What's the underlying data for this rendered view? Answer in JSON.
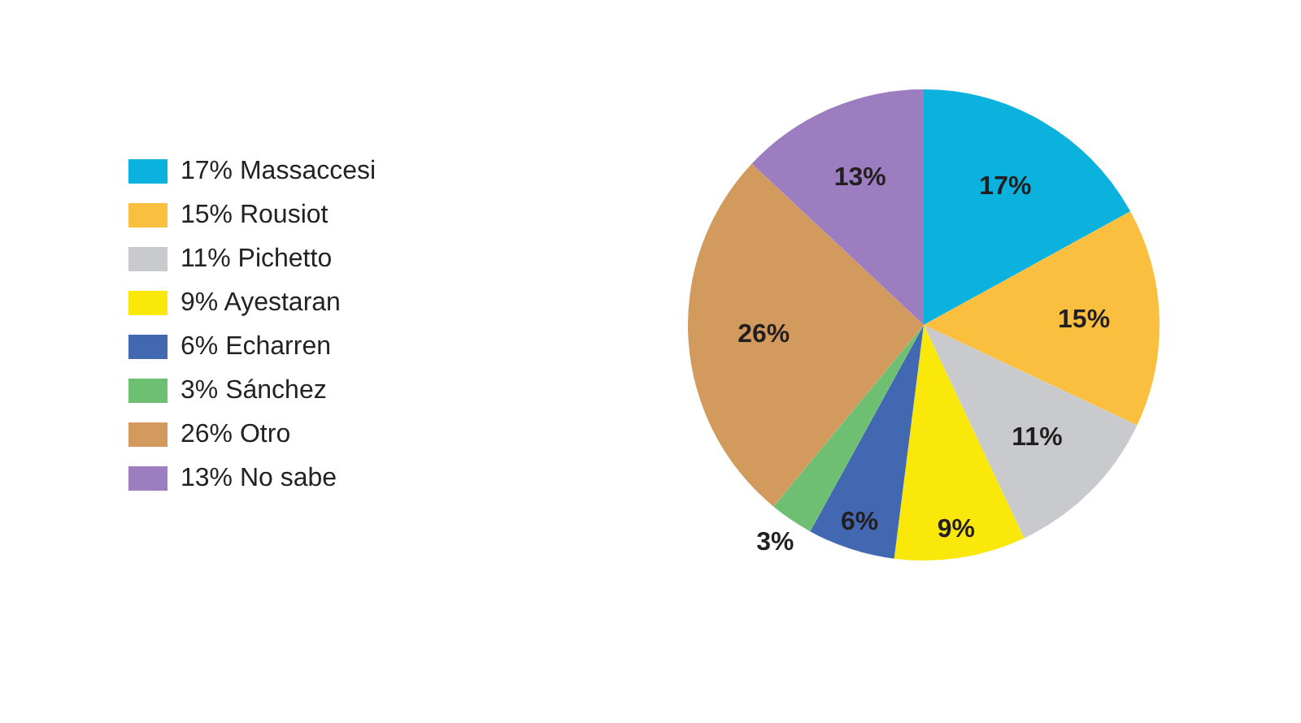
{
  "chart_data": {
    "type": "pie",
    "categories": [
      "Massaccesi",
      "Rousiot",
      "Pichetto",
      "Ayestaran",
      "Echarren",
      "Sánchez",
      "Otro",
      "No sabe"
    ],
    "values": [
      17,
      15,
      11,
      9,
      6,
      3,
      26,
      13
    ],
    "value_labels": [
      "17%",
      "15%",
      "11%",
      "9%",
      "6%",
      "3%",
      "26%",
      "13%"
    ],
    "colors": [
      "#0bb2de",
      "#fbbf3f",
      "#c8cacd",
      "#f9e80a",
      "#4168b0",
      "#6fbf73",
      "#d39a5d",
      "#9b7dc0"
    ],
    "legend": "left"
  }
}
